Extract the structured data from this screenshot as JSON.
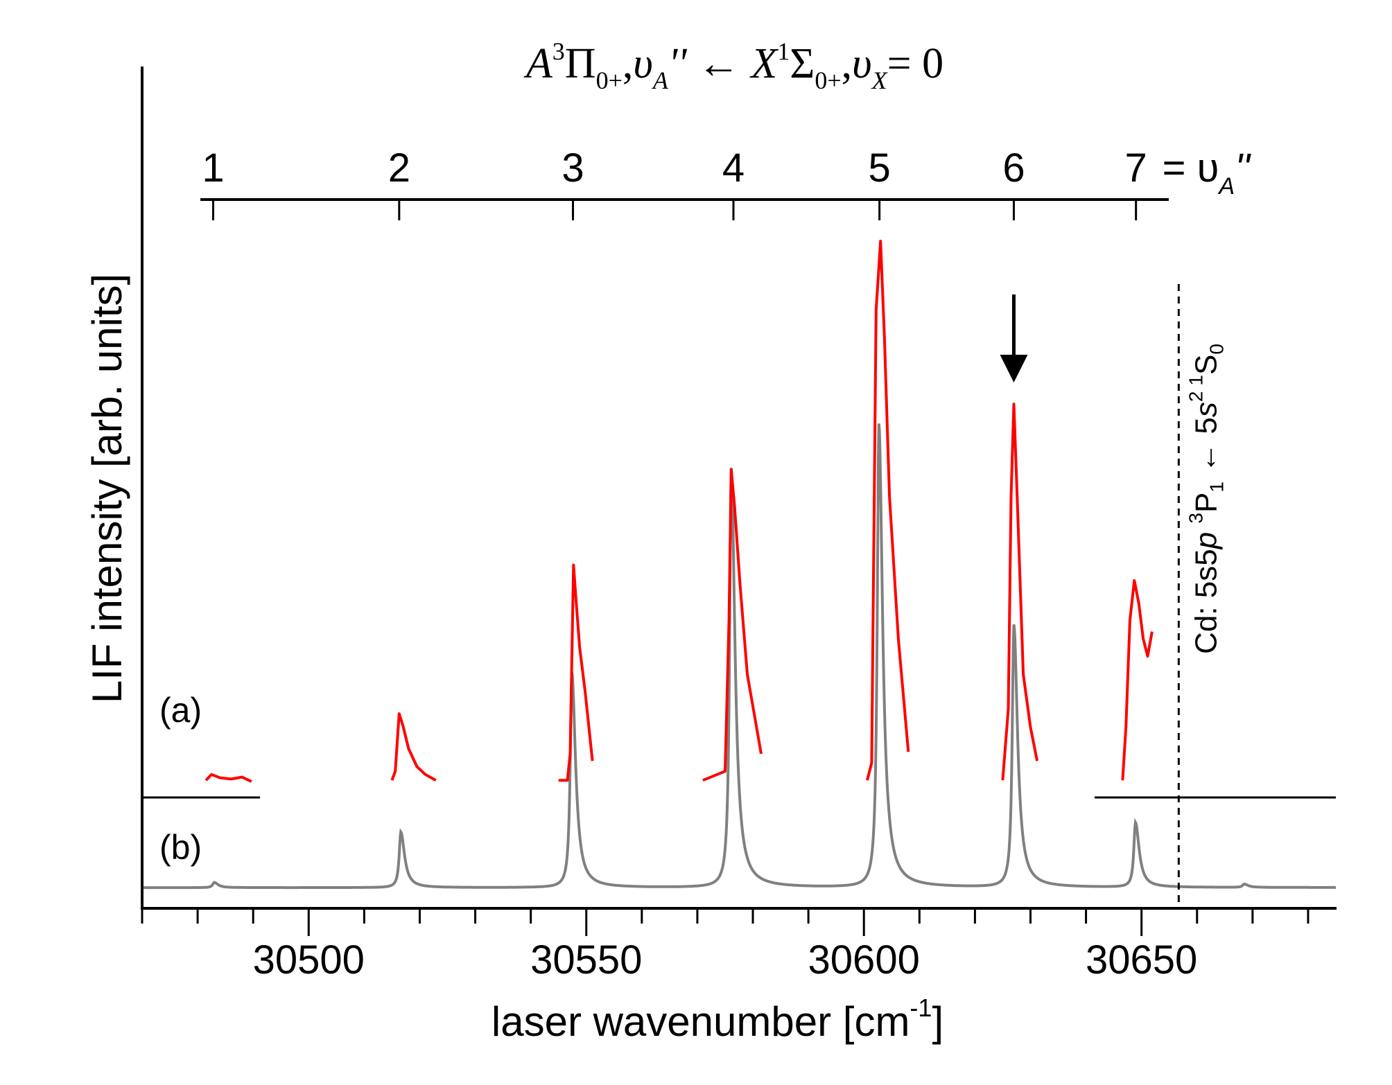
{
  "chart_data": {
    "type": "line",
    "title": "A3Π0+, υA'' ← X1Σ0+, υX = 0",
    "title_parts": {
      "a": "A",
      "a_sup": "3",
      "pi": "Π",
      "pi_sub": "0+",
      "comma1": ",",
      "ups1": "υ",
      "ups1_sub": "A",
      "prime": "''",
      "arrow": "←",
      "x": "X",
      "x_sup": "1",
      "sigma": "Σ",
      "sigma_sub": "0+",
      "comma2": ",",
      "ups2": "υ",
      "ups2_sub": "X",
      "eq": "= 0"
    },
    "xlabel": "laser wavenumber [cm",
    "xlabel_sup": "-1",
    "xlabel_end": "]",
    "ylabel": "LIF intensity [arb. units]",
    "xlim": [
      30470,
      30685
    ],
    "ylim": [
      -3.2,
      127
    ],
    "x_ticks": [
      30500,
      30550,
      30600,
      30650
    ],
    "x_tick_labels": [
      "30500",
      "30550",
      "30600",
      "30650"
    ],
    "x_minor_step": 10,
    "grid": false,
    "top_axis": {
      "labels": [
        "1",
        "2",
        "3",
        "4",
        "5",
        "6",
        "7"
      ],
      "positions": [
        30482.8,
        30516.3,
        30547.6,
        30576.5,
        30602.8,
        30627.0,
        30649.0
      ],
      "suffix": "= υ",
      "suffix_sub": "A",
      "suffix_prime": "''",
      "range": [
        30480.5,
        30654.9
      ]
    },
    "annotations": {
      "label_a": "(a)",
      "label_b": "(b)",
      "arrow_at": 30627.0,
      "cd_line_at": 30656.7,
      "cd_label": {
        "pre": "Cd: 5s5",
        "p": "p",
        "sup1": "3",
        "P": "P",
        "sub1": "1",
        "arrow": " ← 5",
        "s": "s",
        "sup2": "2",
        "sup3": "1",
        "S": "S",
        "sub2": "0"
      }
    },
    "series": [
      {
        "name": "(a)",
        "color": "#ff0000",
        "baseline": 16.6,
        "segments": [
          [
            [
              30481.5,
              16.6
            ],
            [
              30482.5,
              17.5
            ],
            [
              30484,
              17
            ],
            [
              30486,
              16.8
            ],
            [
              30488,
              17.1
            ],
            [
              30489.7,
              16.4
            ]
          ],
          [
            [
              30515,
              16.6
            ],
            [
              30515.6,
              18
            ],
            [
              30516.3,
              26.9
            ],
            [
              30517,
              25
            ],
            [
              30518,
              21.5
            ],
            [
              30519.5,
              18.7
            ],
            [
              30521,
              17.5
            ],
            [
              30522.9,
              16.6
            ]
          ],
          [
            [
              30545,
              16.6
            ],
            [
              30546.6,
              16.6
            ],
            [
              30547.1,
              20.7
            ],
            [
              30547.7,
              49.9
            ],
            [
              30548.2,
              44
            ],
            [
              30548.8,
              37.2
            ],
            [
              30549.8,
              30.3
            ],
            [
              30551.1,
              19.6
            ]
          ],
          [
            [
              30571,
              16.6
            ],
            [
              30575,
              18
            ],
            [
              30575.7,
              41.3
            ],
            [
              30576.1,
              64.6
            ],
            [
              30576.7,
              59
            ],
            [
              30577.7,
              46.8
            ],
            [
              30579,
              33
            ],
            [
              30581.5,
              20.7
            ]
          ],
          [
            [
              30600.6,
              16.6
            ],
            [
              30601.4,
              19.3
            ],
            [
              30602.2,
              89.3
            ],
            [
              30603.0,
              100
            ],
            [
              30603.7,
              85.2
            ],
            [
              30604.6,
              60.5
            ],
            [
              30606.2,
              38.5
            ],
            [
              30608,
              21
            ]
          ],
          [
            [
              30625,
              16.6
            ],
            [
              30626,
              27.6
            ],
            [
              30626.5,
              60.5
            ],
            [
              30627,
              74.8
            ],
            [
              30627.6,
              60.5
            ],
            [
              30628.7,
              33
            ],
            [
              30630,
              24.8
            ],
            [
              30631.2,
              19.6
            ]
          ],
          [
            [
              30646.6,
              16.6
            ],
            [
              30647.2,
              24.8
            ],
            [
              30647.9,
              41.3
            ],
            [
              30648.7,
              47.5
            ],
            [
              30649.5,
              44
            ],
            [
              30650.3,
              38.5
            ],
            [
              30651.1,
              35.8
            ],
            [
              30651.9,
              39.6
            ]
          ]
        ]
      },
      {
        "name": "(b)",
        "color": "#808080",
        "baseline": 0,
        "peaks": [
          {
            "x": 30483.0,
            "y": 0.8
          },
          {
            "x": 30516.6,
            "y": 8.6
          },
          {
            "x": 30547.4,
            "y": 33.3
          },
          {
            "x": 30576.1,
            "y": 64.9
          },
          {
            "x": 30602.7,
            "y": 71.7
          },
          {
            "x": 30627.0,
            "y": 40.6
          },
          {
            "x": 30648.9,
            "y": 10.0
          },
          {
            "x": 30668.5,
            "y": 0.5
          }
        ]
      }
    ]
  }
}
